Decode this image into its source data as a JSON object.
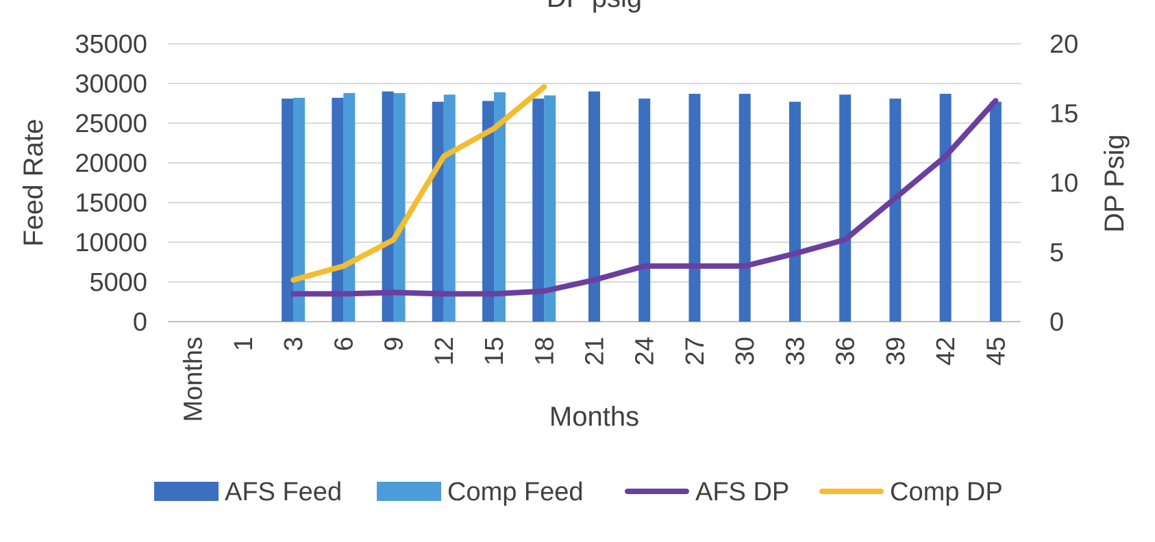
{
  "chart_data": {
    "type": "bar",
    "title": "DP psig",
    "xlabel": "Months",
    "ylabel": "Feed Rate",
    "y2label": "DP Psig",
    "categories": [
      "Months",
      "1",
      "3",
      "6",
      "9",
      "12",
      "15",
      "18",
      "21",
      "24",
      "27",
      "30",
      "33",
      "36",
      "39",
      "42",
      "45"
    ],
    "ylim": [
      0,
      35000
    ],
    "yticks": [
      0,
      5000,
      10000,
      15000,
      20000,
      25000,
      30000,
      35000
    ],
    "y2lim": [
      0,
      20
    ],
    "y2ticks": [
      0,
      5,
      10,
      15,
      20
    ],
    "grid": true,
    "legend_position": "bottom",
    "series": [
      {
        "name": "AFS Feed",
        "kind": "bar",
        "axis": "left",
        "color": "#3A70BF",
        "values": [
          null,
          null,
          28100,
          28200,
          29000,
          27700,
          27800,
          28100,
          29000,
          28100,
          28700,
          28700,
          27700,
          28600,
          28100,
          28700,
          27700
        ]
      },
      {
        "name": "Comp Feed",
        "kind": "bar",
        "axis": "left",
        "color": "#4D9CDA",
        "values": [
          null,
          null,
          28200,
          28800,
          28800,
          28600,
          28900,
          28500,
          null,
          null,
          null,
          null,
          null,
          null,
          null,
          null,
          null
        ]
      },
      {
        "name": "AFS DP",
        "kind": "line",
        "axis": "right",
        "color": "#6A3FA0",
        "values": [
          null,
          null,
          2,
          2,
          2.1,
          2,
          2,
          2.2,
          3,
          4,
          4,
          4,
          4.9,
          5.9,
          8.9,
          11.9,
          15.9
        ]
      },
      {
        "name": "Comp DP",
        "kind": "line",
        "axis": "right",
        "color": "#F5BC30",
        "values": [
          null,
          null,
          3,
          4,
          5.9,
          11.9,
          13.9,
          16.9,
          null,
          null,
          null,
          null,
          null,
          null,
          null,
          null,
          null
        ]
      }
    ]
  }
}
